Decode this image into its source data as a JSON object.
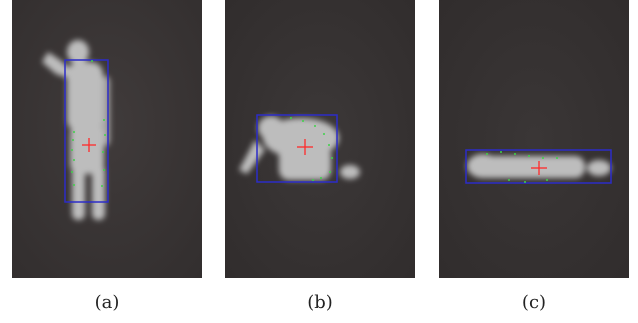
{
  "panels": [
    {
      "id": "a",
      "caption": "(a)",
      "posture": "standing"
    },
    {
      "id": "b",
      "caption": "(b)",
      "posture": "crouching"
    },
    {
      "id": "c",
      "caption": "(c)",
      "posture": "lying"
    }
  ],
  "colors": {
    "background": "#3a3636",
    "figure": "#bdbdbd",
    "bounding_box": "#2c2cc8",
    "centroid_marker": "#ff2a2a",
    "contour_points": "#3fd24a"
  }
}
